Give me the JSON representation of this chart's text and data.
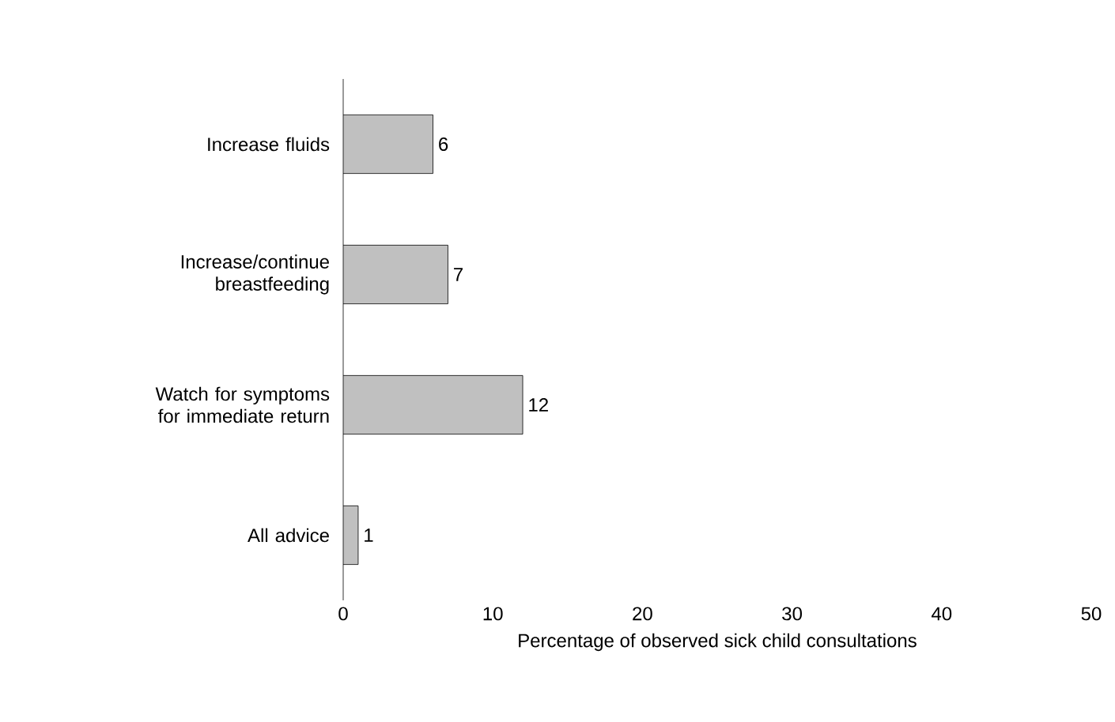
{
  "chart_data": {
    "type": "bar",
    "orientation": "horizontal",
    "xlabel": "Percentage of observed sick child consultations",
    "categories": [
      "Increase fluids",
      "Increase/continue breastfeeding",
      "Watch for symptoms for immediate return",
      "All advice"
    ],
    "values": [
      6,
      7,
      12,
      1
    ],
    "color": "#c0c0c0",
    "xlim": [
      0,
      50
    ],
    "xticks": [
      0,
      10,
      20,
      30,
      40,
      50
    ],
    "data_labels": true,
    "grid": false
  }
}
